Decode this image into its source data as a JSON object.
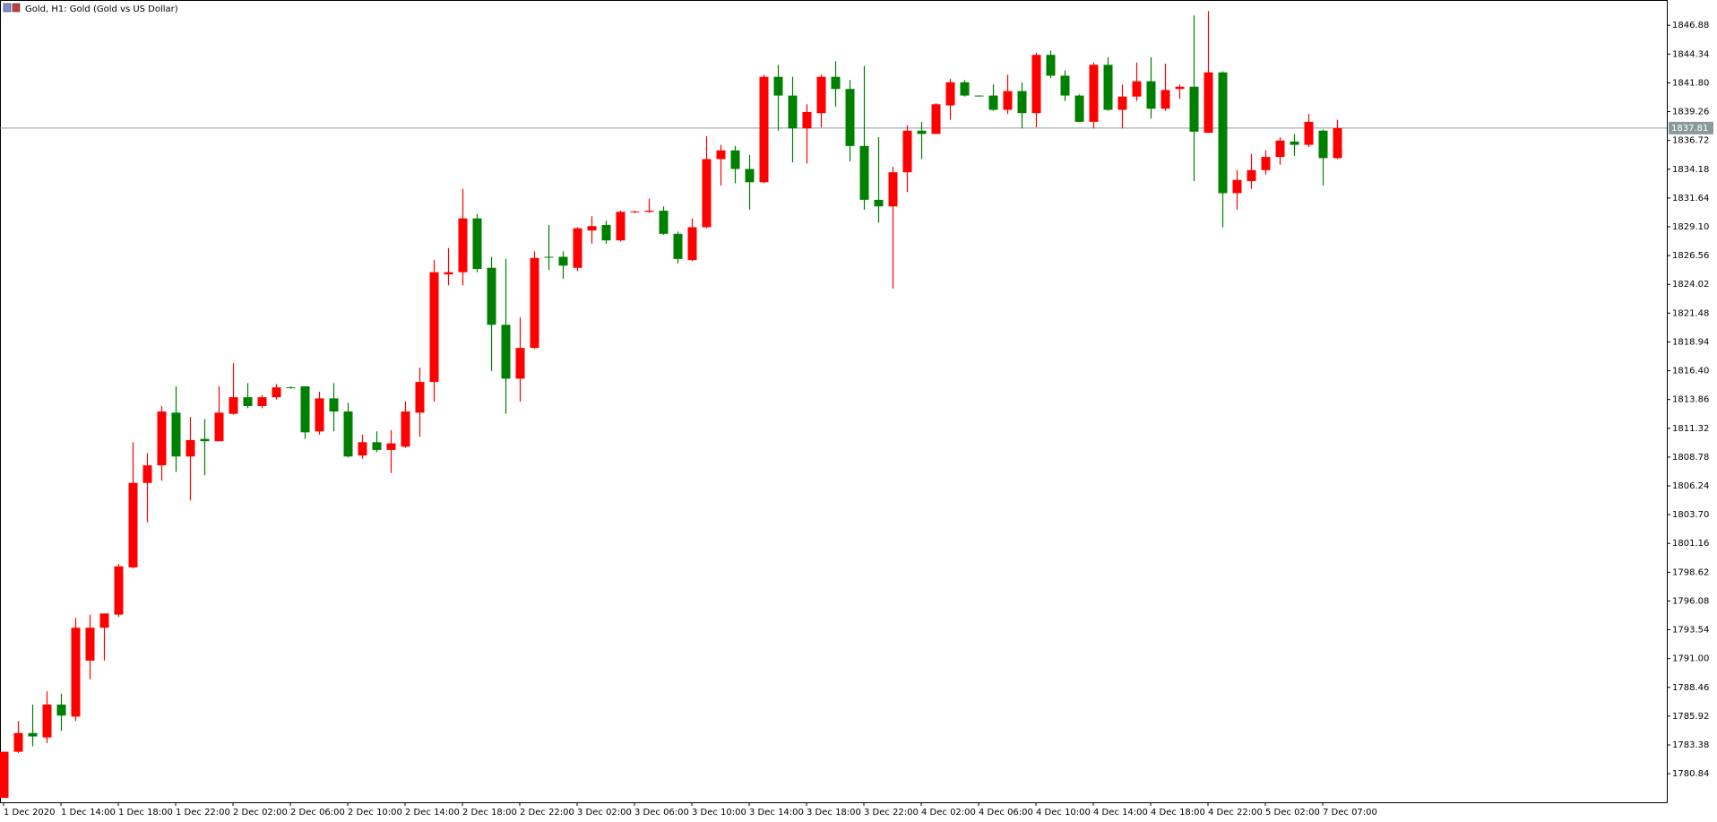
{
  "chart_data": {
    "type": "candlestick",
    "title": "Gold, H1:  Gold (Gold vs US Dollar)",
    "categories": [
      "1 Dec 2020",
      null,
      null,
      null,
      "1 Dec 14:00",
      null,
      null,
      null,
      "1 Dec 18:00",
      null,
      null,
      null,
      "1 Dec 22:00",
      null,
      null,
      null,
      "2 Dec 02:00",
      null,
      null,
      null,
      "2 Dec 06:00",
      null,
      null,
      null,
      "2 Dec 10:00",
      null,
      null,
      null,
      "2 Dec 14:00",
      null,
      null,
      null,
      "2 Dec 18:00",
      null,
      null,
      null,
      "2 Dec 22:00",
      null,
      null,
      null,
      "3 Dec 02:00",
      null,
      null,
      null,
      "3 Dec 06:00",
      null,
      null,
      null,
      "3 Dec 10:00",
      null,
      null,
      null,
      "3 Dec 14:00",
      null,
      null,
      null,
      "3 Dec 18:00",
      null,
      null,
      null,
      "3 Dec 22:00",
      null,
      null,
      null,
      "4 Dec 02:00",
      null,
      null,
      null,
      "4 Dec 06:00",
      null,
      null,
      null,
      "4 Dec 10:00",
      null,
      null,
      null,
      "4 Dec 14:00",
      null,
      null,
      null,
      "4 Dec 18:00",
      null,
      null,
      null,
      "4 Dec 22:00",
      null,
      null,
      null,
      "5 Dec 02:00",
      null,
      null,
      null,
      "7 Dec 07:00",
      null
    ],
    "open": [
      1778.71,
      1782.78,
      1784.43,
      1784.04,
      1786.94,
      1785.88,
      1790.82,
      1793.72,
      1794.88,
      1799.05,
      1806.5,
      1808.05,
      1812.7,
      1808.83,
      1810.38,
      1810.18,
      1812.6,
      1814.06,
      1813.28,
      1814.06,
      1814.93,
      1815.02,
      1811.05,
      1813.96,
      1812.8,
      1808.92,
      1810.09,
      1809.41,
      1809.7,
      1812.7,
      1815.41,
      1824.9,
      1825.09,
      1829.84,
      1825.48,
      1820.45,
      1815.7,
      1818.41,
      1826.45,
      1826.45,
      1825.48,
      1828.77,
      1829.26,
      1827.9,
      1830.42,
      1830.42,
      1830.52,
      1828.48,
      1826.16,
      1829.06,
      1835.07,
      1835.84,
      1834.2,
      1833.03,
      1842.33,
      1840.68,
      1837.78,
      1839.13,
      1842.33,
      1841.26,
      1836.23,
      1831.48,
      1830.9,
      1833.91,
      1837.58,
      1837.29,
      1839.81,
      1841.85,
      1840.68,
      1840.68,
      1839.42,
      1841.07,
      1839.13,
      1844.27,
      1842.43,
      1840.68,
      1838.36,
      1843.39,
      1839.42,
      1840.59,
      1841.94,
      1839.52,
      1841.26,
      1841.46,
      1837.39,
      1842.72,
      1832.07,
      1833.13,
      1834.1,
      1835.26,
      1836.62,
      1836.33,
      1837.58,
      1835.16
    ],
    "high": [
      1782.78,
      1785.49,
      1786.94,
      1788.1,
      1787.91,
      1794.59,
      1794.88,
      1794.98,
      1799.34,
      1810.09,
      1809.12,
      1813.28,
      1815.02,
      1812.31,
      1812.12,
      1815.02,
      1817.06,
      1815.31,
      1814.25,
      1815.22,
      1815.02,
      1815.02,
      1814.54,
      1815.31,
      1813.57,
      1810.76,
      1811.05,
      1811.15,
      1813.67,
      1816.67,
      1826.16,
      1827.22,
      1832.45,
      1830.23,
      1826.45,
      1826.26,
      1821.12,
      1826.93,
      1829.26,
      1826.93,
      1829.06,
      1830.03,
      1829.64,
      1830.52,
      1830.52,
      1831.58,
      1830.9,
      1828.68,
      1829.84,
      1837.1,
      1836.33,
      1836.23,
      1835.45,
      1842.52,
      1843.39,
      1842.33,
      1839.91,
      1842.52,
      1843.69,
      1842.04,
      1843.3,
      1837.0,
      1834.39,
      1838.07,
      1838.36,
      1840.01,
      1842.14,
      1842.04,
      1840.7,
      1841.65,
      1842.52,
      1841.85,
      1844.46,
      1844.65,
      1842.91,
      1840.78,
      1843.59,
      1844.07,
      1841.65,
      1843.59,
      1844.07,
      1843.49,
      1841.65,
      1847.75,
      1848.14,
      1842.81,
      1834.1,
      1835.55,
      1835.84,
      1837.0,
      1837.29,
      1839.04,
      1837.68,
      1838.55
    ],
    "low": [
      1778.71,
      1782.68,
      1783.26,
      1783.55,
      1784.62,
      1785.49,
      1789.17,
      1790.82,
      1794.69,
      1798.95,
      1803.02,
      1806.7,
      1807.47,
      1804.95,
      1807.18,
      1810.18,
      1812.51,
      1813.09,
      1813.09,
      1813.86,
      1814.83,
      1810.38,
      1810.76,
      1811.05,
      1808.73,
      1808.63,
      1809.21,
      1807.37,
      1809.6,
      1810.57,
      1813.67,
      1823.93,
      1823.93,
      1825.09,
      1816.38,
      1812.6,
      1813.67,
      1818.32,
      1825.29,
      1824.51,
      1825.19,
      1827.61,
      1827.61,
      1827.8,
      1830.32,
      1830.32,
      1828.39,
      1825.87,
      1826.06,
      1828.97,
      1832.74,
      1832.94,
      1830.61,
      1832.94,
      1837.58,
      1834.78,
      1834.68,
      1837.88,
      1839.71,
      1834.87,
      1830.61,
      1829.45,
      1823.64,
      1832.16,
      1835.07,
      1837.29,
      1838.55,
      1840.59,
      1840.59,
      1839.33,
      1839.04,
      1837.78,
      1837.88,
      1842.23,
      1840.2,
      1838.36,
      1837.78,
      1839.33,
      1837.78,
      1840.2,
      1838.65,
      1839.33,
      1840.39,
      1833.13,
      1837.39,
      1829.06,
      1830.61,
      1832.45,
      1833.71,
      1834.58,
      1835.36,
      1836.13,
      1832.74,
      1835.07
    ],
    "close": [
      1782.78,
      1784.43,
      1784.13,
      1786.94,
      1785.97,
      1793.72,
      1793.72,
      1794.98,
      1799.14,
      1806.5,
      1808.05,
      1812.8,
      1808.83,
      1810.28,
      1810.18,
      1812.7,
      1814.06,
      1813.28,
      1814.06,
      1814.93,
      1814.9,
      1810.96,
      1813.96,
      1812.8,
      1808.83,
      1810.09,
      1809.41,
      1809.99,
      1812.8,
      1815.41,
      1825.09,
      1825.09,
      1829.84,
      1825.38,
      1820.45,
      1815.7,
      1818.41,
      1826.35,
      1826.42,
      1825.67,
      1828.97,
      1829.16,
      1827.9,
      1830.42,
      1830.45,
      1830.52,
      1828.48,
      1826.26,
      1829.06,
      1835.07,
      1835.84,
      1834.2,
      1833.03,
      1842.33,
      1840.68,
      1837.78,
      1839.23,
      1842.33,
      1841.26,
      1836.23,
      1831.48,
      1830.9,
      1833.91,
      1837.58,
      1837.29,
      1839.91,
      1841.85,
      1840.68,
      1840.65,
      1839.42,
      1841.07,
      1839.13,
      1844.27,
      1842.43,
      1840.68,
      1838.36,
      1843.39,
      1839.42,
      1840.59,
      1841.94,
      1839.52,
      1841.17,
      1841.46,
      1837.49,
      1842.72,
      1832.07,
      1833.23,
      1834.1,
      1835.26,
      1836.71,
      1836.33,
      1838.36,
      1835.16,
      1837.81
    ],
    "up_color": "#ff0000",
    "down_color": "#008000",
    "ylim": [
      1778.32,
      1849.11
    ],
    "yticks": [
      1780.84,
      1783.38,
      1785.92,
      1788.46,
      {
        "value": 1791,
        "label": "1791.00"
      },
      1793.54,
      1796.08,
      1798.62,
      1801.16,
      {
        "value": 1803.7,
        "label": "1803.70"
      },
      1806.24,
      1808.78,
      1811.32,
      1813.86,
      {
        "value": 1816.4,
        "label": "1816.40"
      },
      1818.94,
      1821.48,
      1824.02,
      1826.56,
      {
        "value": 1829.1,
        "label": "1829.10"
      },
      1831.64,
      1834.18,
      1836.72,
      1839.26,
      {
        "value": 1841.8,
        "label": "1841.80"
      },
      1844.34,
      1846.88
    ],
    "current_price": 1837.81,
    "price_line_color": "#8a9a9a"
  }
}
